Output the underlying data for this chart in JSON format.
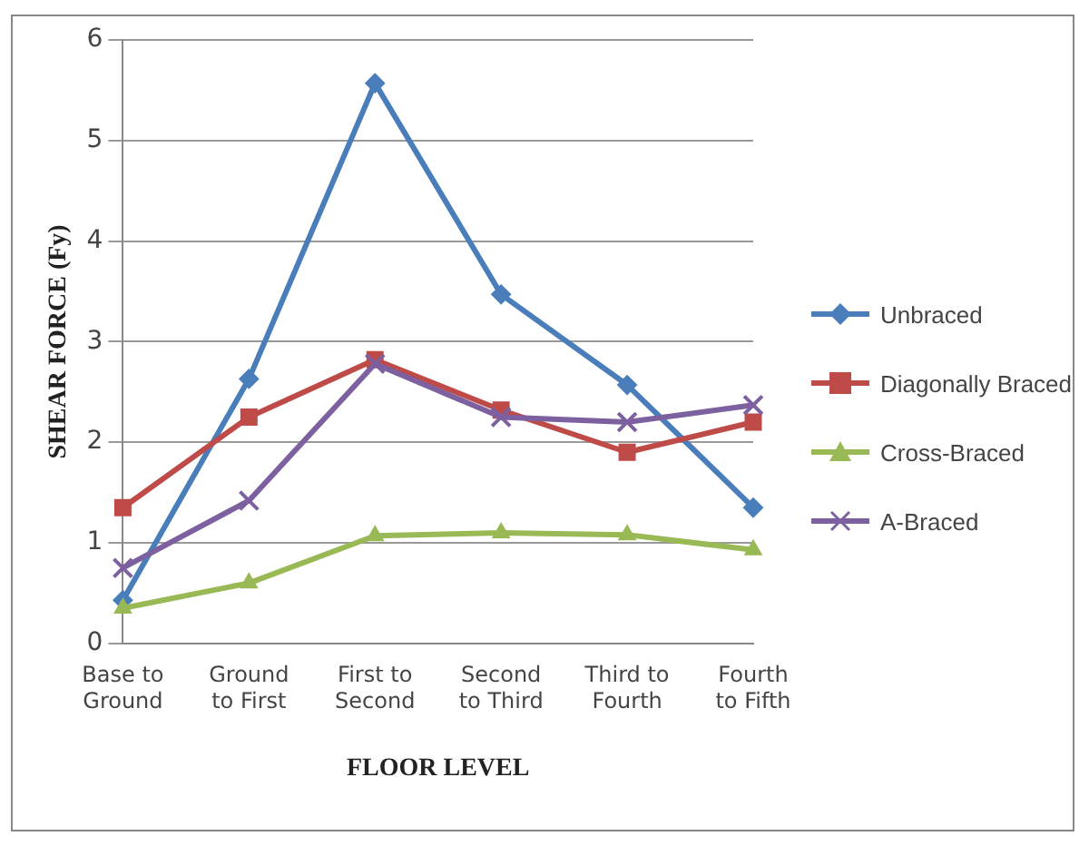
{
  "chart_data": {
    "type": "line",
    "xlabel": "FLOOR LEVEL",
    "ylabel": "SHEAR FORCE (Fy)",
    "categories": [
      "Base to Ground",
      "Ground to First",
      "First to Second",
      "Second to Third",
      "Third to Fourth",
      "Fourth to Fifth"
    ],
    "series": [
      {
        "name": "Unbraced",
        "color": "#4a7ebb",
        "marker": "diamond",
        "values": [
          0.43,
          2.63,
          5.57,
          3.47,
          2.57,
          1.35
        ]
      },
      {
        "name": "Diagonally Braced",
        "color": "#be4b48",
        "marker": "square",
        "values": [
          1.35,
          2.25,
          2.82,
          2.32,
          1.9,
          2.2
        ]
      },
      {
        "name": "Cross-Braced",
        "color": "#98b954",
        "marker": "triangle",
        "values": [
          0.35,
          0.6,
          1.07,
          1.1,
          1.08,
          0.93
        ]
      },
      {
        "name": "A-Braced",
        "color": "#7d60a0",
        "marker": "cross",
        "values": [
          0.75,
          1.42,
          2.78,
          2.25,
          2.2,
          2.37
        ]
      }
    ],
    "ylim": [
      0,
      6
    ],
    "yticks": [
      0,
      1,
      2,
      3,
      4,
      5,
      6
    ],
    "grid": "y",
    "legend": "right",
    "line_style": "solid"
  }
}
